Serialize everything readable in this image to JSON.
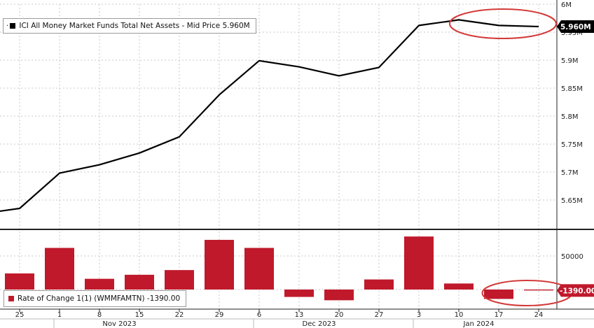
{
  "chart_data": [
    {
      "type": "line",
      "legend": "ICI All Money Market Funds Total Net Assets - Mid Price 5.960M",
      "legend_prefix": "·",
      "last_value_tag": "5.960M",
      "color": "#000000",
      "ylim": [
        5.6,
        6.0
      ],
      "y_ticks": [
        5.65,
        5.7,
        5.75,
        5.8,
        5.85,
        5.9,
        5.95,
        6.0
      ],
      "y_tick_labels": [
        "5.65M",
        "5.7M",
        "5.75M",
        "5.8M",
        "5.85M",
        "5.9M",
        "5.95M",
        "6M"
      ],
      "x": [
        "2023-10-18",
        "2023-10-25",
        "2023-11-01",
        "2023-11-08",
        "2023-11-15",
        "2023-11-22",
        "2023-11-29",
        "2023-12-06",
        "2023-12-13",
        "2023-12-20",
        "2023-12-27",
        "2024-01-03",
        "2024-01-10",
        "2024-01-17",
        "2024-01-24"
      ],
      "values": [
        5.625,
        5.635,
        5.698,
        5.713,
        5.734,
        5.763,
        5.838,
        5.899,
        5.888,
        5.872,
        5.887,
        5.962,
        5.972,
        5.962,
        5.96
      ],
      "annotation": "circled latest points"
    },
    {
      "type": "bar",
      "legend": "Rate of Change 1(1) (WMMFAMTN) -1390.00",
      "last_value_tag": "-1390.00",
      "color": "#c0192c",
      "y_ticks": [
        0,
        50000
      ],
      "y_tick_labels": [
        "",
        "50000"
      ],
      "x": [
        "2023-10-25",
        "2023-11-01",
        "2023-11-08",
        "2023-11-15",
        "2023-11-22",
        "2023-11-29",
        "2023-12-06",
        "2023-12-13",
        "2023-12-20",
        "2023-12-27",
        "2024-01-03",
        "2024-01-10",
        "2024-01-17",
        "2024-01-24"
      ],
      "values": [
        24000,
        62000,
        16000,
        22000,
        29000,
        74000,
        62000,
        -11000,
        -16000,
        15000,
        79000,
        9000,
        -14000,
        -1390
      ],
      "annotation": "circled latest bars"
    }
  ],
  "x_axis": {
    "day_labels": [
      "25",
      "1",
      "8",
      "15",
      "22",
      "29",
      "6",
      "13",
      "20",
      "27",
      "3",
      "10",
      "17",
      "24"
    ],
    "month_labels": [
      {
        "text": "Nov 2023",
        "center_index": 2.5
      },
      {
        "text": "Dec 2023",
        "center_index": 7.5
      },
      {
        "text": "Jan 2024",
        "center_index": 11.5
      }
    ]
  },
  "colors": {
    "background": "#ffffff",
    "grid": "#c8c8c8",
    "line": "#000000",
    "bar": "#c0192c",
    "circle": "#d33a3a",
    "tag_dark": "#000000"
  }
}
